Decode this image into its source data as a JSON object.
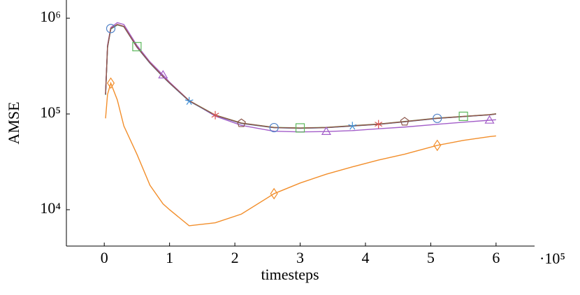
{
  "chart_data": {
    "type": "line",
    "y_label": "AMSE",
    "x_label": "timesteps",
    "x_multiplier_label": "·10⁵",
    "yscale": "log",
    "xlim": [
      -0.58,
      6.59
    ],
    "ylim": [
      4170,
      1550000
    ],
    "xticks": [
      0,
      1,
      2,
      3,
      4,
      5,
      6
    ],
    "yticks": [
      {
        "value": 10000,
        "label": "10⁴"
      },
      {
        "value": 100000,
        "label": "10⁵"
      },
      {
        "value": 1000000,
        "label": "10⁶"
      }
    ],
    "x": [
      0.02,
      0.05,
      0.1,
      0.2,
      0.3,
      0.5,
      0.7,
      0.9,
      1.0,
      1.3,
      1.7,
      2.1,
      2.6,
      3.0,
      3.4,
      3.8,
      4.2,
      4.6,
      5.1,
      5.5,
      5.9,
      6.0
    ],
    "series": [
      {
        "color": "#4f81c7",
        "marker": "circle",
        "marker_indices": [
          2,
          12,
          18
        ],
        "values": [
          160000,
          500000,
          780000,
          860000,
          820000,
          500000,
          340000,
          245000,
          210000,
          137000,
          97000,
          80000,
          72000,
          71000,
          72000,
          75000,
          78000,
          83000,
          90000,
          94000,
          98000,
          100000
        ]
      },
      {
        "color": "#5cb85c",
        "marker": "square",
        "marker_indices": [
          5,
          13,
          19
        ],
        "values": [
          158000,
          495000,
          770000,
          850000,
          815000,
          505000,
          345000,
          248000,
          212000,
          138000,
          97500,
          80500,
          72500,
          71500,
          72500,
          75500,
          78500,
          83500,
          90500,
          94500,
          98500,
          100500
        ]
      },
      {
        "color": "#a35ec9",
        "marker": "triangle",
        "marker_indices": [
          7,
          14,
          20
        ],
        "values": [
          165000,
          520000,
          800000,
          900000,
          860000,
          520000,
          350000,
          255000,
          215000,
          138000,
          95000,
          76000,
          66000,
          65000,
          65500,
          67000,
          70000,
          73000,
          78000,
          82000,
          86000,
          87000
        ]
      },
      {
        "color": "#3f8fd6",
        "marker": "star",
        "marker_indices": [
          9,
          15
        ],
        "values": [
          159000,
          498000,
          775000,
          855000,
          818000,
          498000,
          338000,
          244000,
          209000,
          136000,
          96500,
          79500,
          71800,
          70800,
          71800,
          74800,
          77800,
          82800,
          89800,
          93800,
          97800,
          99800
        ]
      },
      {
        "color": "#d9534f",
        "marker": "asterisk",
        "marker_indices": [
          10,
          16
        ],
        "values": [
          161000,
          502000,
          782000,
          862000,
          822000,
          502000,
          342000,
          246000,
          211000,
          137500,
          97200,
          80200,
          72200,
          71200,
          72200,
          75200,
          78200,
          83200,
          90200,
          94200,
          98200,
          100200
        ]
      },
      {
        "color": "#8c564b",
        "marker": "pentagon",
        "marker_indices": [
          11,
          17
        ],
        "values": [
          160500,
          501000,
          779000,
          858000,
          819000,
          501000,
          341000,
          245500,
          210500,
          137200,
          97100,
          80100,
          72100,
          71100,
          72100,
          75100,
          78100,
          83100,
          90100,
          94100,
          98100,
          100100
        ]
      },
      {
        "color": "#f28e2b",
        "marker": "diamond",
        "marker_indices": [
          2,
          12,
          18
        ],
        "values": [
          90000,
          160000,
          210000,
          140000,
          75000,
          38000,
          18000,
          11500,
          10000,
          6800,
          7300,
          9000,
          14700,
          19000,
          23500,
          28000,
          33000,
          38000,
          47000,
          53000,
          58000,
          59000
        ]
      }
    ]
  }
}
